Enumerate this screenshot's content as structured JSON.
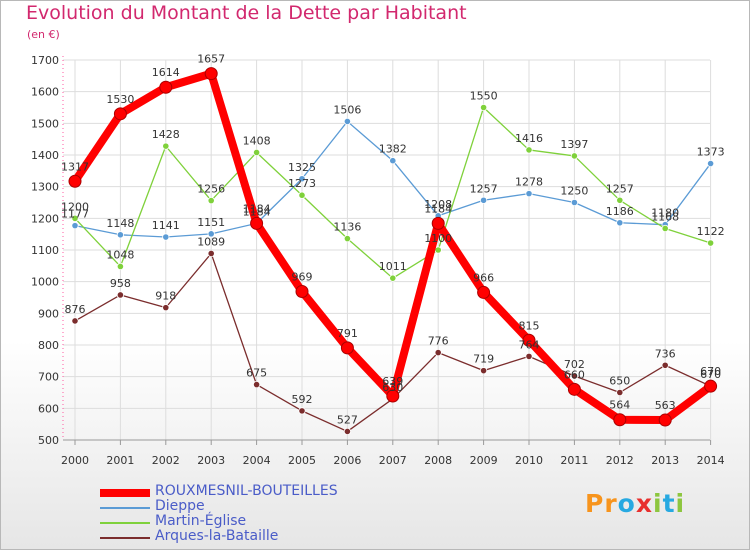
{
  "header": {
    "title": "Evolution du Montant de la Dette par Habitant",
    "subtitle": "(en €)"
  },
  "logo": {
    "letters": [
      "P",
      "r",
      "o",
      "x",
      "i",
      "t",
      "i"
    ],
    "colors": [
      "#f7941d",
      "#f7941d",
      "#27a9e1",
      "#e8302e",
      "#8dc63f",
      "#27a9e1",
      "#8dc63f"
    ]
  },
  "chart_data": {
    "type": "line",
    "x": [
      2000,
      2001,
      2002,
      2003,
      2004,
      2005,
      2006,
      2007,
      2008,
      2009,
      2010,
      2011,
      2012,
      2013,
      2014
    ],
    "ylim": [
      500,
      1700
    ],
    "yticks": [
      500,
      600,
      700,
      800,
      900,
      1000,
      1100,
      1200,
      1300,
      1400,
      1500,
      1600,
      1700
    ],
    "grid": true,
    "legend_position": "bottom-left",
    "series": [
      {
        "name": "ROUXMESNIL-BOUTEILLES",
        "color": "#ff0000",
        "values": [
          1317,
          1530,
          1614,
          1657,
          1184,
          969,
          791,
          639,
          1184,
          966,
          815,
          660,
          564,
          563,
          670
        ]
      },
      {
        "name": "Dieppe",
        "color": "#5b9bd5",
        "values": [
          1177,
          1148,
          1141,
          1151,
          1184,
          1325,
          1506,
          1382,
          1208,
          1257,
          1278,
          1250,
          1186,
          1180,
          1373
        ]
      },
      {
        "name": "Martin-Église",
        "color": "#7fd13b",
        "values": [
          1200,
          1048,
          1428,
          1256,
          1408,
          1273,
          1136,
          1011,
          1100,
          1550,
          1416,
          1397,
          1257,
          1168,
          1122
        ]
      },
      {
        "name": "Arques-la-Bataille",
        "color": "#7b2d2d",
        "values": [
          876,
          958,
          918,
          1089,
          675,
          592,
          527,
          630,
          776,
          719,
          764,
          702,
          650,
          736,
          670
        ]
      }
    ]
  }
}
